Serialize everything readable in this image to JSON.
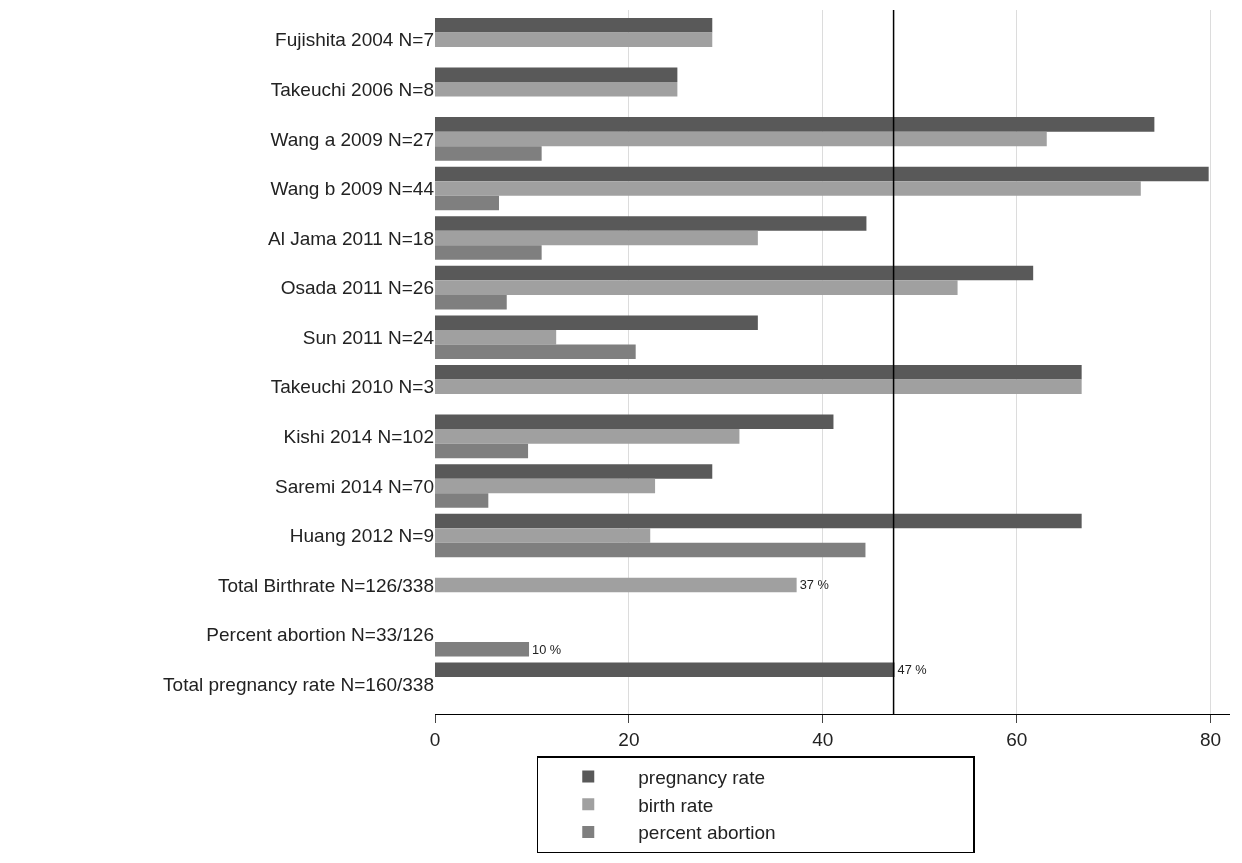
{
  "chart_data": {
    "type": "bar",
    "orientation": "horizontal",
    "categories": [
      "Fujishita 2004 N=7",
      "Takeuchi 2006 N=8",
      "Wang a 2009 N=27",
      "Wang b 2009 N=44",
      "Al Jama 2011 N=18",
      "Osada 2011 N=26",
      "Sun 2011 N=24",
      "Takeuchi 2010 N=3",
      "Kishi 2014 N=102",
      "Saremi 2014 N=70",
      "Huang 2012 N=9",
      "Total Birthrate N=126/338",
      "Percent abortion N=33/126",
      "Total pregnancy rate N=160/338"
    ],
    "series": [
      {
        "name": "pregnancy rate",
        "color": "#595959",
        "values": [
          28.6,
          25,
          74.2,
          79.8,
          44.5,
          61.7,
          33.3,
          66.7,
          41.1,
          28.6,
          66.7,
          null,
          null,
          47.4
        ],
        "value_labels": [
          null,
          null,
          null,
          null,
          null,
          null,
          null,
          null,
          null,
          null,
          null,
          null,
          null,
          "47 %"
        ]
      },
      {
        "name": "birth rate",
        "color": "#a0a0a0",
        "values": [
          28.6,
          25,
          63.1,
          72.8,
          33.3,
          53.9,
          12.5,
          66.7,
          31.4,
          22.7,
          22.2,
          37.3,
          null,
          null
        ],
        "value_labels": [
          null,
          null,
          null,
          null,
          null,
          null,
          null,
          null,
          null,
          null,
          null,
          "37 %",
          null,
          null
        ]
      },
      {
        "name": "percent abortion",
        "color": "#7f7f7f",
        "values": [
          null,
          null,
          11,
          6.6,
          11,
          7.4,
          20.7,
          null,
          9.6,
          5.5,
          44.4,
          null,
          9.7,
          null
        ],
        "value_labels": [
          null,
          null,
          null,
          null,
          null,
          null,
          null,
          null,
          null,
          null,
          null,
          null,
          "10 %",
          null
        ]
      }
    ],
    "xlim": [
      0,
      82
    ],
    "xticks": [
      0,
      20,
      40,
      60,
      80
    ],
    "grid": "x",
    "legend": "bottom",
    "ref_lines": [
      {
        "axis": "x",
        "value": 47.3,
        "color": "#000000"
      }
    ]
  }
}
